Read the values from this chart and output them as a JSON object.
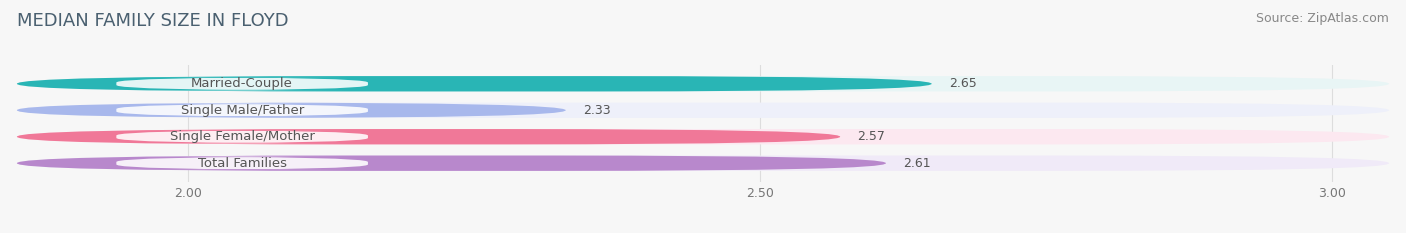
{
  "title": "MEDIAN FAMILY SIZE IN FLOYD",
  "source": "Source: ZipAtlas.com",
  "categories": [
    "Married-Couple",
    "Single Male/Father",
    "Single Female/Mother",
    "Total Families"
  ],
  "values": [
    2.65,
    2.33,
    2.57,
    2.61
  ],
  "bar_colors": [
    "#29b5b5",
    "#a8b8ec",
    "#f07898",
    "#b888cc"
  ],
  "bar_bg_colors": [
    "#e8f5f5",
    "#eef0fa",
    "#fce8f0",
    "#f0eaf8"
  ],
  "label_bg_color": "#ffffff",
  "xlim": [
    1.85,
    3.05
  ],
  "xticks": [
    2.0,
    2.5,
    3.0
  ],
  "xtick_labels": [
    "2.00",
    "2.50",
    "3.00"
  ],
  "bar_height": 0.58,
  "label_fontsize": 9.5,
  "value_fontsize": 9,
  "title_fontsize": 13,
  "source_fontsize": 9,
  "background_color": "#f7f7f7",
  "grid_color": "#dddddd",
  "title_color": "#4a6070",
  "source_color": "#888888",
  "label_color": "#555555",
  "value_color": "#555555"
}
